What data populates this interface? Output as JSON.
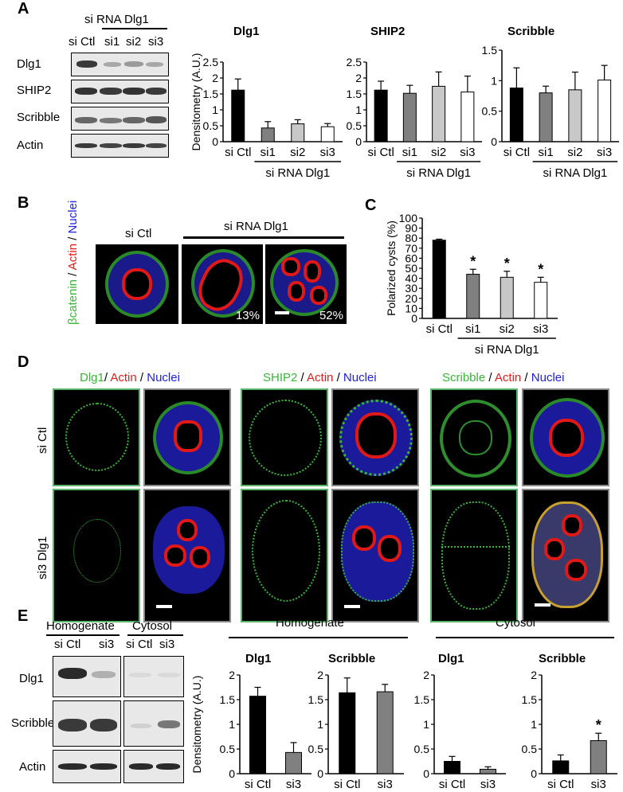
{
  "panels": {
    "A": "A",
    "B": "B",
    "C": "C",
    "D": "D",
    "E": "E"
  },
  "panelA": {
    "header_group": "si RNA Dlg1",
    "lane_labels": [
      "si Ctl",
      "si1",
      "si2",
      "si3"
    ],
    "row_labels": [
      "Dlg1",
      "SHIP2",
      "Scribble",
      "Actin"
    ]
  },
  "panelB": {
    "col_ctl": "si Ctl",
    "col_group": "si RNA Dlg1",
    "stain_parts": [
      "βcatenin",
      " / ",
      "Actin",
      " / ",
      "Nuclei"
    ],
    "pct1": "13%",
    "pct2": "52%"
  },
  "panelD": {
    "headers": [
      {
        "a": "Dlg1",
        "b": "Actin",
        "c": "Nuclei"
      },
      {
        "a": "SHIP2",
        "b": "Actin",
        "c": "Nuclei"
      },
      {
        "a": "Scribble",
        "b": "Actin",
        "c": "Nuclei"
      }
    ],
    "sep": " / ",
    "sep1": "/ ",
    "row1": "si Ctl",
    "row2": "si3 Dlg1"
  },
  "panelE": {
    "blot_hdr1": "Homogenate",
    "blot_hdr2": "Cytosol",
    "lanes1": [
      "si Ctl",
      "si3"
    ],
    "lanes2": [
      "si Ctl",
      "si3"
    ],
    "row_labels": [
      "Dlg1",
      "Scribble",
      "Actin"
    ],
    "chart_hdr1": "Homogenate",
    "chart_hdr2": "Cytosol"
  },
  "colors": {
    "black": "#000000",
    "dark_gray": "#808080",
    "light_gray": "#c8c8c8",
    "white": "#ffffff",
    "green": "#5ab56c"
  },
  "chart_data": [
    {
      "id": "A-Dlg1",
      "type": "bar",
      "title": "Dlg1",
      "ylabel": "Densitometry (A.U.)",
      "categories": [
        "si Ctl",
        "si1",
        "si2",
        "si3"
      ],
      "values": [
        1.62,
        0.43,
        0.56,
        0.47
      ],
      "errors": [
        0.35,
        0.2,
        0.13,
        0.1
      ],
      "fills": [
        "#000000",
        "#808080",
        "#c8c8c8",
        "#ffffff"
      ],
      "ylim": [
        0,
        2.5
      ],
      "ticks": [
        "0",
        "0.5",
        "1",
        "1.5",
        "2",
        "2.5"
      ],
      "group_label": "si RNA Dlg1",
      "group_from": 1,
      "group_to": 3
    },
    {
      "id": "A-SHIP2",
      "type": "bar",
      "title": "SHIP2",
      "ylabel": "",
      "categories": [
        "si Ctl",
        "si1",
        "si2",
        "si3"
      ],
      "values": [
        1.62,
        1.52,
        1.74,
        1.56
      ],
      "errors": [
        0.28,
        0.25,
        0.45,
        0.5
      ],
      "fills": [
        "#000000",
        "#808080",
        "#c8c8c8",
        "#ffffff"
      ],
      "ylim": [
        0,
        2.5
      ],
      "ticks": [
        "0",
        "0.5",
        "1",
        "1.5",
        "2",
        "2.5"
      ],
      "group_label": "si RNA Dlg1",
      "group_from": 1,
      "group_to": 3
    },
    {
      "id": "A-Scribble",
      "type": "bar",
      "title": "Scribble",
      "ylabel": "",
      "categories": [
        "si Ctl",
        "si1",
        "si2",
        "si3"
      ],
      "values": [
        0.88,
        0.8,
        0.85,
        1.01
      ],
      "errors": [
        0.33,
        0.11,
        0.29,
        0.24
      ],
      "fills": [
        "#000000",
        "#808080",
        "#c8c8c8",
        "#ffffff"
      ],
      "ylim": [
        0,
        1.5
      ],
      "ticks": [
        "0",
        "0.5",
        "1",
        "1.5"
      ],
      "group_label": "si RNA Dlg1",
      "group_from": 1,
      "group_to": 3
    },
    {
      "id": "C",
      "type": "bar",
      "title": "",
      "ylabel": "Polarized cysts (%)",
      "categories": [
        "si Ctl",
        "si1",
        "si2",
        "si3"
      ],
      "values": [
        78,
        44,
        41,
        36
      ],
      "errors": [
        1,
        5,
        6,
        5
      ],
      "fills": [
        "#000000",
        "#808080",
        "#c8c8c8",
        "#ffffff"
      ],
      "ylim": [
        0,
        100
      ],
      "ticks": [
        "0",
        "10",
        "20",
        "30",
        "40",
        "50",
        "60",
        "70",
        "80",
        "90",
        "100"
      ],
      "stars": [
        "",
        "*",
        "*",
        "*"
      ],
      "group_label": "si RNA Dlg1",
      "group_from": 1,
      "group_to": 3
    },
    {
      "id": "E-Hom-Dlg1",
      "type": "bar",
      "title": "Dlg1",
      "ylabel": "Densitometry (A.U.)",
      "categories": [
        "si Ctl",
        "si3"
      ],
      "values": [
        1.57,
        0.43
      ],
      "errors": [
        0.18,
        0.2
      ],
      "fills": [
        "#000000",
        "#808080"
      ],
      "ylim": [
        0,
        2
      ],
      "ticks": [
        "0",
        "0.5",
        "1",
        "1.5",
        "2"
      ]
    },
    {
      "id": "E-Hom-Scribble",
      "type": "bar",
      "title": "Scribble",
      "ylabel": "",
      "categories": [
        "si Ctl",
        "si3"
      ],
      "values": [
        1.64,
        1.66
      ],
      "errors": [
        0.3,
        0.15
      ],
      "fills": [
        "#000000",
        "#808080"
      ],
      "ylim": [
        0,
        2
      ],
      "ticks": [
        "0",
        "0.5",
        "1",
        "1.5",
        "2"
      ]
    },
    {
      "id": "E-Cyt-Dlg1",
      "type": "bar",
      "title": "Dlg1",
      "ylabel": "",
      "categories": [
        "si Ctl",
        "si3"
      ],
      "values": [
        0.25,
        0.09
      ],
      "errors": [
        0.1,
        0.05
      ],
      "fills": [
        "#000000",
        "#808080"
      ],
      "ylim": [
        0,
        2
      ],
      "ticks": [
        "0",
        "0.5",
        "1",
        "1.5",
        "2"
      ]
    },
    {
      "id": "E-Cyt-Scribble",
      "type": "bar",
      "title": "Scribble",
      "ylabel": "",
      "categories": [
        "si Ctl",
        "si3"
      ],
      "values": [
        0.26,
        0.67
      ],
      "errors": [
        0.12,
        0.15
      ],
      "fills": [
        "#000000",
        "#808080"
      ],
      "ylim": [
        0,
        2
      ],
      "ticks": [
        "0",
        "0.5",
        "1",
        "1.5",
        "2"
      ],
      "stars": [
        "",
        "*"
      ]
    }
  ]
}
